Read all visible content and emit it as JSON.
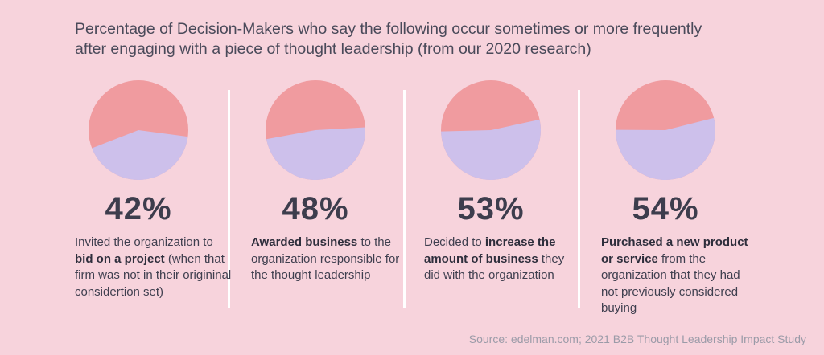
{
  "chart_data": {
    "type": "pie",
    "title_lines": [
      "Percentage of Decision-Makers who say the following occur sometimes or more frequently",
      "after engaging with a piece of thought leadership (from our 2020 research)"
    ],
    "colors": {
      "value": "#cdc0eb",
      "remainder": "#f09b9f"
    },
    "items": [
      {
        "value": 42,
        "label": "42%",
        "desc": [
          {
            "t": "Invited the organization to ",
            "b": false
          },
          {
            "t": "bid on a project",
            "b": true
          },
          {
            "t": " (when that firm was not in their origininal considertion set)",
            "b": false
          }
        ]
      },
      {
        "value": 48,
        "label": "48%",
        "desc": [
          {
            "t": "Awarded business",
            "b": true
          },
          {
            "t": " to the organization responsible for the thought leadership",
            "b": false
          }
        ]
      },
      {
        "value": 53,
        "label": "53%",
        "desc": [
          {
            "t": "Decided to ",
            "b": false
          },
          {
            "t": "increase the amount of business",
            "b": true
          },
          {
            "t": " they did with the organization",
            "b": false
          }
        ]
      },
      {
        "value": 54,
        "label": "54%",
        "desc": [
          {
            "t": "Purchased a new product or service",
            "b": true
          },
          {
            "t": " from the organization that they had not previously considered buying",
            "b": false
          }
        ]
      }
    ],
    "source": "Source: edelman.com; 2021 B2B Thought Leadership Impact Study"
  }
}
